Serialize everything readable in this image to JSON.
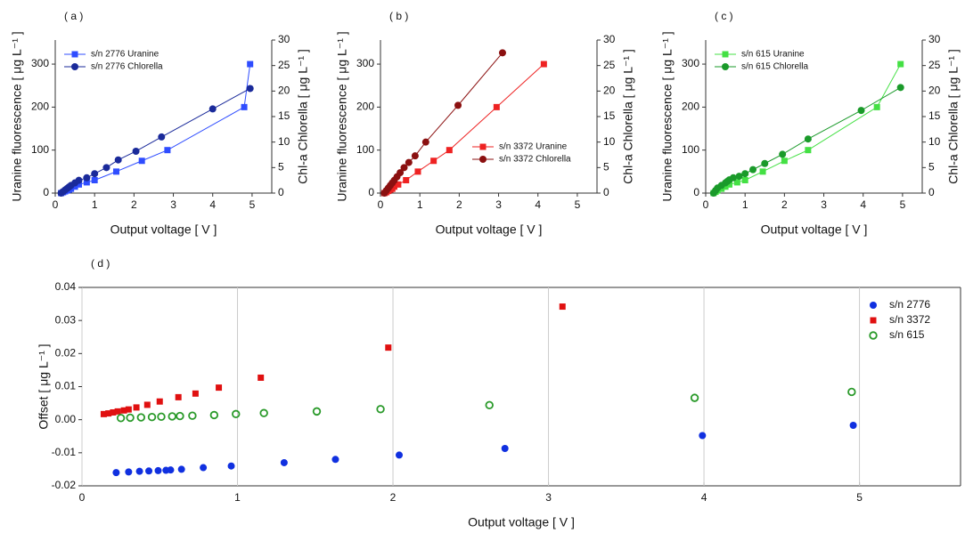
{
  "chart_data": [
    {
      "type": "line",
      "title": "( a )",
      "xlabel": "Output voltage [ V ]",
      "ylabel": "Uranine fluorescence [ μg L⁻¹ ]",
      "y2label": "Chl-a Chlorella [ μg L⁻¹ ]",
      "xlim": [
        0,
        5.5
      ],
      "xticks": [
        0,
        1,
        2,
        3,
        4,
        5
      ],
      "ylim": [
        0,
        356
      ],
      "yticks": [
        0,
        100,
        200,
        300
      ],
      "y2lim": [
        0,
        30
      ],
      "y2ticks": [
        0,
        5,
        10,
        15,
        20,
        25,
        30
      ],
      "legend": "upper left",
      "series": [
        {
          "name": "s/n 2776 Uranine",
          "color": "#2f4dff",
          "marker": "square",
          "axis": "y",
          "x": [
            0.15,
            0.2,
            0.25,
            0.3,
            0.35,
            0.4,
            0.5,
            0.6,
            0.8,
            1.0,
            1.55,
            2.2,
            2.85,
            4.8,
            4.95
          ],
          "values": [
            0,
            2,
            4,
            6,
            8,
            10,
            15,
            20,
            25,
            30,
            50,
            75,
            100,
            200,
            300
          ]
        },
        {
          "name": "s/n 2776 Chlorella",
          "color": "#1a2a9a",
          "marker": "circle",
          "axis": "y2",
          "x": [
            0.15,
            0.2,
            0.25,
            0.3,
            0.35,
            0.4,
            0.5,
            0.6,
            0.8,
            1.0,
            1.3,
            1.6,
            2.05,
            2.7,
            4.0,
            4.95
          ],
          "values": [
            0,
            0.3,
            0.6,
            0.9,
            1.2,
            1.5,
            2,
            2.5,
            3,
            3.8,
            5,
            6.5,
            8.2,
            11,
            16.5,
            20.5
          ]
        }
      ]
    },
    {
      "type": "line",
      "title": "( b )",
      "xlabel": "Output voltage [ V ]",
      "ylabel": "Uranine fluorescence [ μg L⁻¹ ]",
      "y2label": "Chl-a Chlorella [ μg L⁻¹ ]",
      "xlim": [
        0,
        5.5
      ],
      "xticks": [
        0,
        1,
        2,
        3,
        4,
        5
      ],
      "ylim": [
        0,
        356
      ],
      "yticks": [
        0,
        100,
        200,
        300
      ],
      "y2lim": [
        0,
        30
      ],
      "y2ticks": [
        0,
        5,
        10,
        15,
        20,
        25,
        30
      ],
      "legend": "lower right",
      "series": [
        {
          "name": "s/n 3372 Uranine",
          "color": "#ee2222",
          "marker": "square",
          "axis": "y",
          "x": [
            0.1,
            0.15,
            0.2,
            0.25,
            0.3,
            0.35,
            0.45,
            0.65,
            0.95,
            1.35,
            1.75,
            2.95,
            4.15
          ],
          "values": [
            0,
            2,
            5,
            8,
            10,
            15,
            20,
            30,
            50,
            75,
            100,
            200,
            300
          ]
        },
        {
          "name": "s/n 3372 Chlorella",
          "color": "#8b1010",
          "marker": "circle",
          "axis": "y2",
          "x": [
            0.1,
            0.15,
            0.2,
            0.25,
            0.3,
            0.35,
            0.42,
            0.5,
            0.6,
            0.72,
            0.88,
            1.15,
            1.97,
            3.1
          ],
          "values": [
            0,
            0.5,
            1,
            1.5,
            2,
            2.5,
            3.2,
            4,
            5,
            6,
            7.3,
            10,
            17.2,
            27.5
          ]
        }
      ]
    },
    {
      "type": "line",
      "title": "( c )",
      "xlabel": "Output voltage [ V ]",
      "ylabel": "Uranine fluorescence [ μg L⁻¹ ]",
      "y2label": "Chl-a Chlorella [ μg L⁻¹ ]",
      "xlim": [
        0,
        5.5
      ],
      "xticks": [
        0,
        1,
        2,
        3,
        4,
        5
      ],
      "ylim": [
        0,
        356
      ],
      "yticks": [
        0,
        100,
        200,
        300
      ],
      "y2lim": [
        0,
        30
      ],
      "y2ticks": [
        0,
        5,
        10,
        15,
        20,
        25,
        30
      ],
      "legend": "upper left",
      "series": [
        {
          "name": "s/n 615 Uranine",
          "color": "#44e044",
          "marker": "square",
          "axis": "y",
          "x": [
            0.2,
            0.25,
            0.3,
            0.4,
            0.5,
            0.6,
            0.8,
            1.0,
            1.45,
            2.0,
            2.6,
            4.35,
            4.95
          ],
          "values": [
            0,
            3,
            6,
            10,
            15,
            20,
            25,
            30,
            50,
            75,
            100,
            200,
            300
          ]
        },
        {
          "name": "s/n 615 Chlorella",
          "color": "#1a9a2a",
          "marker": "circle",
          "axis": "y2",
          "x": [
            0.2,
            0.25,
            0.3,
            0.4,
            0.5,
            0.55,
            0.6,
            0.7,
            0.85,
            1.0,
            1.2,
            1.5,
            1.95,
            2.6,
            3.95,
            4.95
          ],
          "values": [
            0,
            0.5,
            1,
            1.5,
            2,
            2.3,
            2.6,
            3,
            3.3,
            3.8,
            4.6,
            5.8,
            7.6,
            10.6,
            16.2,
            20.7
          ]
        }
      ]
    },
    {
      "type": "scatter",
      "title": "( d )",
      "xlabel": "Output voltage [ V ]",
      "ylabel": "Offset [ μg L⁻¹ ]",
      "xlim": [
        0,
        5.65
      ],
      "xticks": [
        0,
        1,
        2,
        3,
        4,
        5
      ],
      "ylim": [
        -0.02,
        0.04
      ],
      "yticks": [
        -0.02,
        -0.01,
        {
          "value": 0,
          "label": "0.00"
        },
        0.01,
        0.02,
        0.03,
        0.04
      ],
      "legend": "upper right",
      "series": [
        {
          "name": "s/n 2776",
          "color": "#1030e0",
          "marker": "circle",
          "x": [
            0.22,
            0.3,
            0.37,
            0.43,
            0.49,
            0.54,
            0.57,
            0.64,
            0.78,
            0.96,
            1.3,
            1.63,
            2.04,
            2.72,
            3.99,
            4.96
          ],
          "values": [
            -0.016,
            -0.0158,
            -0.0156,
            -0.0155,
            -0.0154,
            -0.0153,
            -0.0152,
            -0.015,
            -0.0145,
            -0.014,
            -0.013,
            -0.012,
            -0.0107,
            -0.0087,
            -0.0048,
            -0.0017
          ]
        },
        {
          "name": "s/n 3372",
          "color": "#e01010",
          "marker": "square",
          "x": [
            0.14,
            0.17,
            0.2,
            0.23,
            0.27,
            0.3,
            0.35,
            0.42,
            0.5,
            0.62,
            0.73,
            0.88,
            1.15,
            1.97,
            3.09
          ],
          "values": [
            0.0017,
            0.0019,
            0.0022,
            0.0025,
            0.0028,
            0.0031,
            0.0037,
            0.0045,
            0.0055,
            0.0068,
            0.0079,
            0.0097,
            0.0127,
            0.0218,
            0.0342
          ]
        },
        {
          "name": "s/n 615",
          "color": "#2a9a2a",
          "marker": "open-circle",
          "x": [
            0.25,
            0.31,
            0.38,
            0.45,
            0.51,
            0.58,
            0.63,
            0.71,
            0.85,
            0.99,
            1.17,
            1.51,
            1.92,
            2.62,
            3.94,
            4.95
          ],
          "values": [
            0.0005,
            0.0006,
            0.0007,
            0.0008,
            0.0009,
            0.001,
            0.0011,
            0.0012,
            0.0014,
            0.0017,
            0.002,
            0.0025,
            0.0032,
            0.0044,
            0.0066,
            0.0084
          ]
        }
      ]
    }
  ]
}
